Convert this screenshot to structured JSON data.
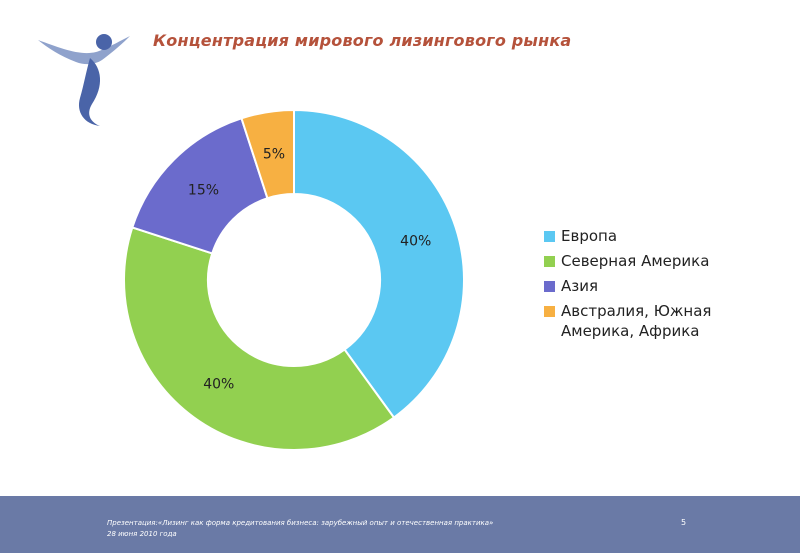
{
  "header": {
    "title": "Концентрация мирового лизингового рынка"
  },
  "chart_data": {
    "type": "pie",
    "variant": "donut",
    "title": "",
    "categories": [
      "Европа",
      "Северная Америка",
      "Азия",
      "Австралия, Южная Америка, Африка"
    ],
    "values": [
      40,
      40,
      15,
      5
    ],
    "data_labels": [
      "40%",
      "40%",
      "15%",
      "5%"
    ],
    "colors": [
      "#5bc8f2",
      "#92d050",
      "#6b6bcc",
      "#f7b042"
    ],
    "legend": "right"
  },
  "footer": {
    "line1": "Презентация:«Лизинг как форма кредитования бизнеса: зарубежный опыт и отечественная практика»",
    "line2": "28 июня 2010 года",
    "page_number": "5"
  },
  "logo": {
    "icon": "person-figure-icon",
    "colors": [
      "#4a64a8",
      "#8fa2cc"
    ]
  }
}
